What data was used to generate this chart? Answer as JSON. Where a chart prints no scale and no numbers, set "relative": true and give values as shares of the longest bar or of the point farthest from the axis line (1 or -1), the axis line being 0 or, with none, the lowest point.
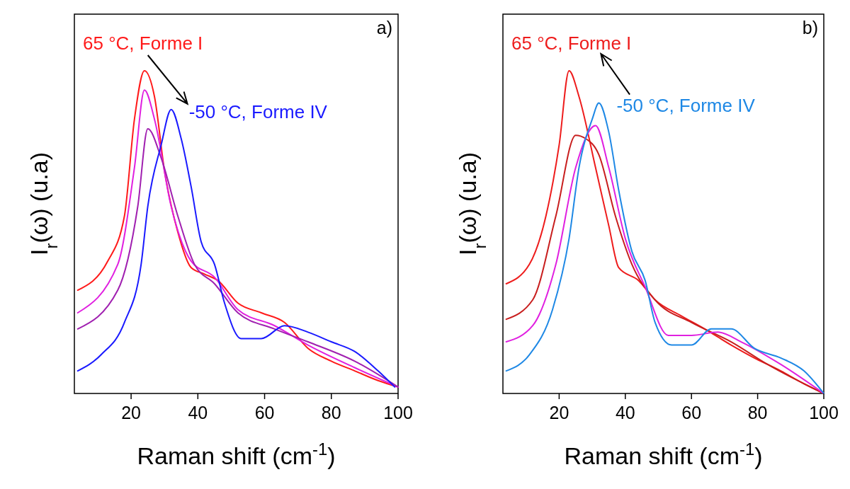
{
  "chart_data": [
    {
      "type": "line",
      "title": "a)",
      "xlabel": "Raman shift (cm$^{-1}$)",
      "ylabel": "I$_{r}$(ω) (u.a)",
      "relative": true,
      "xlim": [
        3,
        100
      ],
      "xticks": [
        20,
        40,
        60,
        80,
        100
      ],
      "series": [
        {
          "name": "65 °C, Forme I",
          "color": "#ff1a1a",
          "x": [
            4,
            13,
            18,
            21,
            24,
            27,
            30,
            34,
            38,
            42,
            46,
            52,
            59,
            66,
            73,
            80,
            87,
            94,
            100
          ],
          "values": [
            0.32,
            0.41,
            0.55,
            0.85,
            1.0,
            0.92,
            0.69,
            0.5,
            0.39,
            0.37,
            0.35,
            0.28,
            0.25,
            0.22,
            0.14,
            0.1,
            0.07,
            0.04,
            0.02
          ]
        },
        {
          "color": "#e020e0",
          "x": [
            4,
            16,
            21,
            24,
            27,
            32,
            38,
            45,
            52,
            63,
            73,
            87,
            100
          ],
          "values": [
            0.25,
            0.4,
            0.7,
            0.94,
            0.85,
            0.58,
            0.41,
            0.36,
            0.26,
            0.21,
            0.15,
            0.08,
            0.02
          ]
        },
        {
          "color": "#a020b0",
          "x": [
            4,
            16,
            22,
            25,
            29,
            34,
            39,
            45,
            52,
            63,
            73,
            87,
            100
          ],
          "values": [
            0.2,
            0.32,
            0.58,
            0.82,
            0.73,
            0.55,
            0.4,
            0.34,
            0.25,
            0.2,
            0.16,
            0.1,
            0.02
          ]
        },
        {
          "name": "-50 °C, Forme IV",
          "color": "#1a1aff",
          "x": [
            4,
            11,
            18,
            23,
            25,
            29,
            32,
            35,
            38,
            41,
            45,
            48,
            53,
            59,
            66,
            73,
            80,
            87,
            94,
            99
          ],
          "values": [
            0.07,
            0.12,
            0.22,
            0.4,
            0.58,
            0.77,
            0.88,
            0.79,
            0.64,
            0.47,
            0.4,
            0.28,
            0.17,
            0.17,
            0.21,
            0.19,
            0.16,
            0.13,
            0.07,
            0.02
          ]
        }
      ]
    },
    {
      "type": "line",
      "title": "b)",
      "xlabel": "Raman shift (cm$^{-1}$)",
      "ylabel": "I$_{r}$(ω) (u.a)",
      "relative": true,
      "xlim": [
        3,
        100
      ],
      "xticks": [
        20,
        40,
        60,
        80,
        100
      ],
      "series": [
        {
          "name": "65 °C, Forme I",
          "color": "#ee1c1c",
          "x": [
            4,
            11,
            16,
            20,
            23,
            26,
            31,
            35,
            38,
            44,
            49,
            57,
            64,
            72,
            79,
            87,
            94,
            100
          ],
          "values": [
            0.34,
            0.4,
            0.55,
            0.77,
            1.0,
            0.92,
            0.7,
            0.52,
            0.39,
            0.35,
            0.29,
            0.24,
            0.2,
            0.15,
            0.11,
            0.07,
            0.03,
            0
          ]
        },
        {
          "color": "#c81e1e",
          "x": [
            4,
            12,
            19,
            25,
            28,
            32,
            37,
            42,
            49,
            60,
            72,
            83,
            100
          ],
          "values": [
            0.23,
            0.29,
            0.55,
            0.8,
            0.79,
            0.74,
            0.55,
            0.4,
            0.29,
            0.22,
            0.16,
            0.09,
            0
          ]
        },
        {
          "color": "#e020e0",
          "x": [
            4,
            12,
            19,
            25,
            31,
            35,
            40,
            46,
            53,
            60,
            68,
            75,
            87,
            100
          ],
          "values": [
            0.16,
            0.21,
            0.4,
            0.7,
            0.83,
            0.7,
            0.48,
            0.33,
            0.18,
            0.18,
            0.19,
            0.16,
            0.09,
            0
          ]
        },
        {
          "name": "-50 °C, Forme IV",
          "color": "#1e88e5",
          "x": [
            4,
            11,
            18,
            23,
            26,
            30,
            32,
            35,
            38,
            42,
            46,
            49,
            54,
            60,
            66,
            72,
            79,
            87,
            94,
            100
          ],
          "values": [
            0.07,
            0.12,
            0.26,
            0.48,
            0.7,
            0.85,
            0.9,
            0.81,
            0.63,
            0.44,
            0.35,
            0.22,
            0.15,
            0.15,
            0.2,
            0.2,
            0.14,
            0.11,
            0.07,
            0
          ]
        }
      ]
    }
  ]
}
